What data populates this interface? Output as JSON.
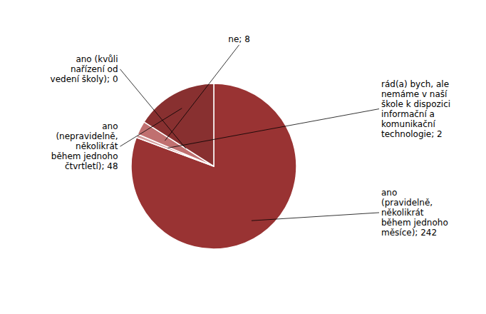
{
  "chart_data": {
    "type": "pie",
    "categories": [
      "ano\n(pravidelně,\nněkolikrát\nběhem jednoho\nměsíce); 242",
      "rád(a) bych, ale\nnemáme v naší\nškole k dispozici\ninformační a\nkomunikační\ntechnologie; 2",
      "ne; 8",
      "ano (kvůli\nnařízení od\nvedení školy); 0",
      "ano\n(nepravidelně,\nněkolikrát\nběhem jednoho\nčtvrtletí); 48"
    ],
    "values": [
      242,
      2,
      8,
      0,
      48
    ],
    "colors": [
      "#993333",
      "#d4a0a0",
      "#c07070",
      "#993333",
      "#883030"
    ]
  }
}
